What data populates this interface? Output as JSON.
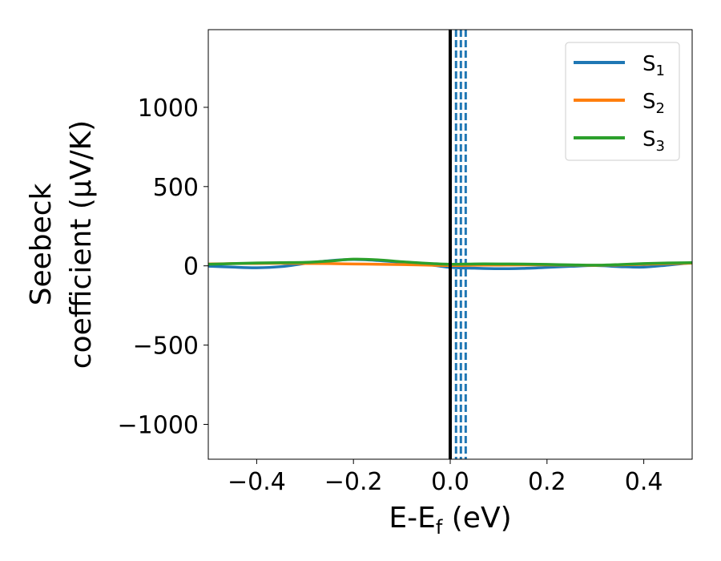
{
  "chart_data": {
    "type": "line",
    "title": "",
    "xlabel": "E-E",
    "xlabel_sub": "f",
    "xlabel_tail": " (eV)",
    "ylabel_line1": "Seebeck",
    "ylabel_line2": "coefficient  (μV/K)",
    "xlim": [
      -0.5,
      0.5
    ],
    "ylim": [
      -1220,
      1490
    ],
    "xticks": [
      -0.4,
      -0.2,
      0.0,
      0.2,
      0.4
    ],
    "xtick_labels": [
      "−0.4",
      "−0.2",
      "0.0",
      "0.2",
      "0.4"
    ],
    "yticks": [
      -1000,
      -500,
      0,
      500,
      1000
    ],
    "ytick_labels": [
      "−1000",
      "−500",
      "0",
      "500",
      "1000"
    ],
    "legend_position": "top-right",
    "fermi_line": {
      "x": 0.0,
      "color": "#000000"
    },
    "dashed_lines": {
      "x": [
        0.012,
        0.022,
        0.032
      ],
      "color": "#1f77b4"
    },
    "series": [
      {
        "name": "S",
        "sub": "1",
        "color": "#1f77b4",
        "x": [
          -0.5,
          -0.45,
          -0.4,
          -0.35,
          -0.3,
          -0.25,
          -0.2,
          -0.15,
          -0.1,
          -0.05,
          0.0,
          0.05,
          0.1,
          0.15,
          0.2,
          0.25,
          0.3,
          0.35,
          0.4,
          0.45,
          0.5
        ],
        "y": [
          -2,
          -8,
          -12,
          -5,
          15,
          32,
          40,
          34,
          22,
          10,
          -10,
          -15,
          -18,
          -16,
          -10,
          -3,
          2,
          -5,
          -8,
          5,
          20
        ]
      },
      {
        "name": "S",
        "sub": "2",
        "color": "#ff7f0e",
        "x": [
          -0.5,
          -0.45,
          -0.4,
          -0.35,
          -0.3,
          -0.25,
          -0.2,
          -0.15,
          -0.1,
          -0.05,
          0.0,
          0.05,
          0.1,
          0.15,
          0.2,
          0.25,
          0.3,
          0.35,
          0.4,
          0.45,
          0.5
        ],
        "y": [
          12,
          14,
          15,
          16,
          15,
          14,
          12,
          10,
          8,
          5,
          2,
          4,
          5,
          6,
          6,
          5,
          3,
          6,
          10,
          14,
          17
        ]
      },
      {
        "name": "S",
        "sub": "3",
        "color": "#2ca02c",
        "x": [
          -0.5,
          -0.45,
          -0.4,
          -0.35,
          -0.3,
          -0.25,
          -0.2,
          -0.15,
          -0.1,
          -0.05,
          0.0,
          0.05,
          0.1,
          0.15,
          0.2,
          0.25,
          0.3,
          0.35,
          0.4,
          0.45,
          0.5
        ],
        "y": [
          10,
          14,
          18,
          20,
          22,
          30,
          42,
          38,
          26,
          16,
          10,
          12,
          12,
          11,
          9,
          6,
          4,
          8,
          14,
          18,
          20
        ]
      }
    ]
  }
}
